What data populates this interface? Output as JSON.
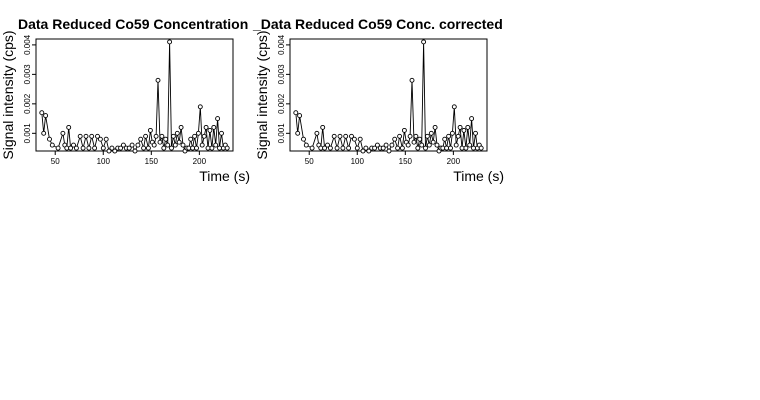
{
  "chart_data": [
    {
      "type": "line",
      "title": "Data Reduced Co59 Concentration",
      "xlabel": "Time (s)",
      "ylabel": "Signal intensity (cps)",
      "xlim": [
        30,
        235
      ],
      "ylim": [
        0.0004,
        0.0042
      ],
      "xticks": [
        50,
        100,
        150,
        200
      ],
      "yticks": [
        0.001,
        0.002,
        0.003,
        0.004
      ],
      "grid": false,
      "series": [
        {
          "x": [
            36,
            38,
            40,
            44,
            47,
            53,
            58,
            60,
            62,
            64,
            66,
            69,
            72,
            76,
            79,
            82,
            85,
            88,
            91,
            94,
            97,
            100,
            103,
            106,
            109,
            112,
            115,
            118,
            121,
            124,
            127,
            130,
            133,
            136,
            139,
            142,
            144,
            147,
            149,
            151,
            153,
            155,
            157,
            159,
            161,
            163,
            165,
            167,
            169,
            171,
            173,
            175,
            177,
            179,
            181,
            183,
            185,
            187,
            189,
            191,
            193,
            195,
            197,
            199,
            201,
            203,
            205,
            207,
            209,
            211,
            213,
            215,
            217,
            219,
            221,
            223,
            225,
            227,
            229
          ],
          "y": [
            0.0017,
            0.001,
            0.0016,
            0.0008,
            0.0006,
            0.0005,
            0.001,
            0.0006,
            0.0005,
            0.0012,
            0.0005,
            0.0006,
            0.0005,
            0.0009,
            0.0005,
            0.0009,
            0.0005,
            0.0009,
            0.0005,
            0.0009,
            0.0008,
            0.0005,
            0.0008,
            0.0004,
            0.0005,
            0.0004,
            0.0005,
            0.0005,
            0.0006,
            0.0005,
            0.0005,
            0.0006,
            0.0004,
            0.0006,
            0.0008,
            0.0005,
            0.0009,
            0.0005,
            0.0011,
            0.0007,
            0.0006,
            0.0009,
            0.0028,
            0.0007,
            0.0009,
            0.0005,
            0.0008,
            0.0006,
            0.0041,
            0.0005,
            0.0009,
            0.0006,
            0.001,
            0.0007,
            0.0012,
            0.0006,
            0.0004,
            0.0005,
            0.0005,
            0.0008,
            0.0005,
            0.0009,
            0.0005,
            0.001,
            0.0019,
            0.0006,
            0.0009,
            0.0012,
            0.0005,
            0.0011,
            0.0005,
            0.0012,
            0.0006,
            0.0015,
            0.0005,
            0.001,
            0.0005,
            0.0006,
            0.0005
          ]
        }
      ]
    },
    {
      "type": "line",
      "title": "_Data Reduced Co59 Conc. corrected",
      "xlabel": "Time (s)",
      "ylabel": "Signal intensity (cps)",
      "xlim": [
        30,
        235
      ],
      "ylim": [
        0.0004,
        0.0042
      ],
      "xticks": [
        50,
        100,
        150,
        200
      ],
      "yticks": [
        0.001,
        0.002,
        0.003,
        0.004
      ],
      "grid": false,
      "series": [
        {
          "x": [
            36,
            38,
            40,
            44,
            47,
            53,
            58,
            60,
            62,
            64,
            66,
            69,
            72,
            76,
            79,
            82,
            85,
            88,
            91,
            94,
            97,
            100,
            103,
            106,
            109,
            112,
            115,
            118,
            121,
            124,
            127,
            130,
            133,
            136,
            139,
            142,
            144,
            147,
            149,
            151,
            153,
            155,
            157,
            159,
            161,
            163,
            165,
            167,
            169,
            171,
            173,
            175,
            177,
            179,
            181,
            183,
            185,
            187,
            189,
            191,
            193,
            195,
            197,
            199,
            201,
            203,
            205,
            207,
            209,
            211,
            213,
            215,
            217,
            219,
            221,
            223,
            225,
            227,
            229
          ],
          "y": [
            0.0017,
            0.001,
            0.0016,
            0.0008,
            0.0006,
            0.0005,
            0.001,
            0.0006,
            0.0005,
            0.0012,
            0.0005,
            0.0006,
            0.0005,
            0.0009,
            0.0005,
            0.0009,
            0.0005,
            0.0009,
            0.0005,
            0.0009,
            0.0008,
            0.0005,
            0.0008,
            0.0004,
            0.0005,
            0.0004,
            0.0005,
            0.0005,
            0.0006,
            0.0005,
            0.0005,
            0.0006,
            0.0004,
            0.0006,
            0.0008,
            0.0005,
            0.0009,
            0.0005,
            0.0011,
            0.0007,
            0.0006,
            0.0009,
            0.0028,
            0.0007,
            0.0009,
            0.0005,
            0.0008,
            0.0006,
            0.0041,
            0.0005,
            0.0009,
            0.0006,
            0.001,
            0.0007,
            0.0012,
            0.0006,
            0.0004,
            0.0005,
            0.0005,
            0.0008,
            0.0005,
            0.0009,
            0.0005,
            0.001,
            0.0019,
            0.0006,
            0.0009,
            0.0012,
            0.0005,
            0.0011,
            0.0005,
            0.0012,
            0.0006,
            0.0015,
            0.0005,
            0.001,
            0.0005,
            0.0006,
            0.0005
          ]
        }
      ]
    }
  ]
}
